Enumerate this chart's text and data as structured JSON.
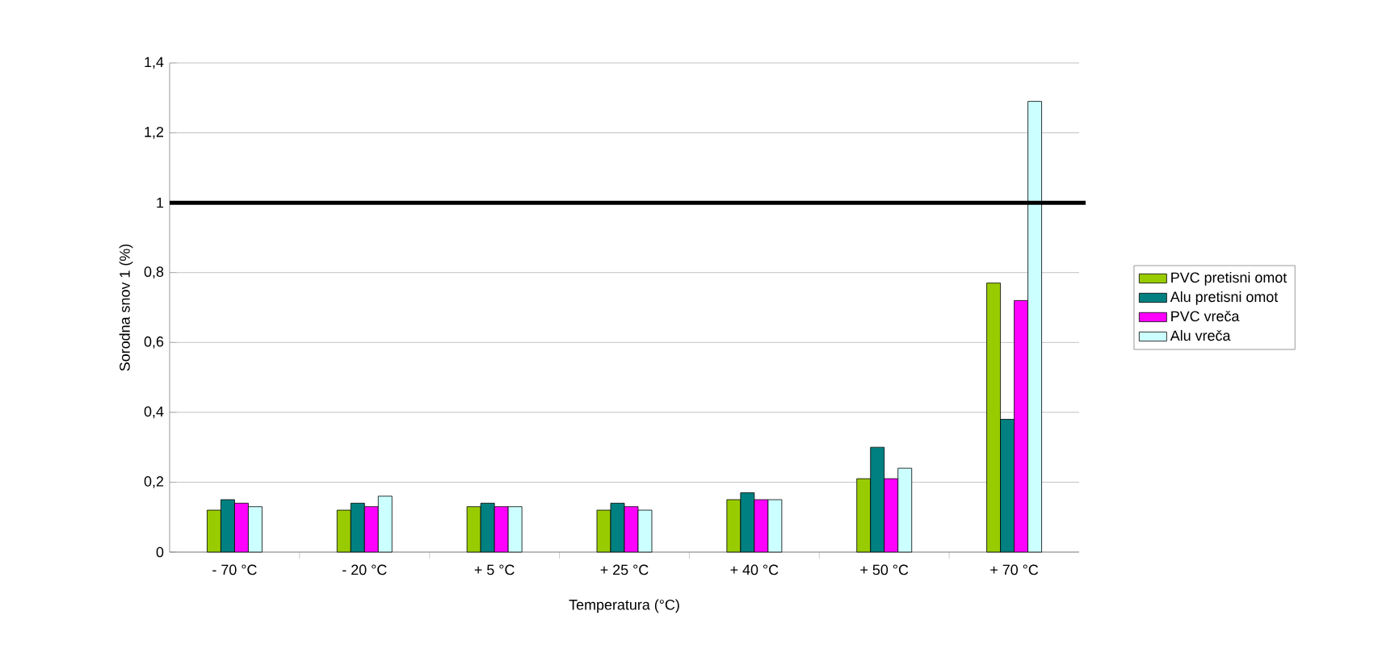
{
  "chart_data": {
    "type": "bar",
    "xlabel": "Temperatura (°C)",
    "ylabel": "Sorodna snov 1 (%)",
    "categories": [
      "- 70 °C",
      "- 20 °C",
      "+ 5 °C",
      "+ 25 °C",
      "+ 40 °C",
      "+ 50 °C",
      "+ 70 °C"
    ],
    "series": [
      {
        "name": "PVC pretisni omot",
        "color": "#99cc00",
        "values": [
          0.12,
          0.12,
          0.13,
          0.12,
          0.15,
          0.21,
          0.77
        ]
      },
      {
        "name": "Alu pretisni omot",
        "color": "#008080",
        "values": [
          0.15,
          0.14,
          0.14,
          0.14,
          0.17,
          0.3,
          0.38
        ]
      },
      {
        "name": "PVC vreča",
        "color": "#ff00ff",
        "values": [
          0.14,
          0.13,
          0.13,
          0.13,
          0.15,
          0.21,
          0.72
        ]
      },
      {
        "name": "Alu vreča",
        "color": "#ccffff",
        "values": [
          0.13,
          0.16,
          0.13,
          0.12,
          0.15,
          0.24,
          1.29
        ]
      }
    ],
    "ylim": [
      0,
      1.4
    ],
    "yticks": [
      {
        "value": 0,
        "label": "0"
      },
      {
        "value": 0.2,
        "label": "0,2"
      },
      {
        "value": 0.4,
        "label": "0,4"
      },
      {
        "value": 0.6,
        "label": "0,6"
      },
      {
        "value": 0.8,
        "label": "0,8"
      },
      {
        "value": 1,
        "label": "1"
      },
      {
        "value": 1.2,
        "label": "1,2"
      },
      {
        "value": 1.4,
        "label": "1,4"
      }
    ],
    "ref_lines": [
      {
        "axis": "y",
        "value": 1,
        "color": "#000000"
      }
    ],
    "grid": "y",
    "legend": "right"
  }
}
